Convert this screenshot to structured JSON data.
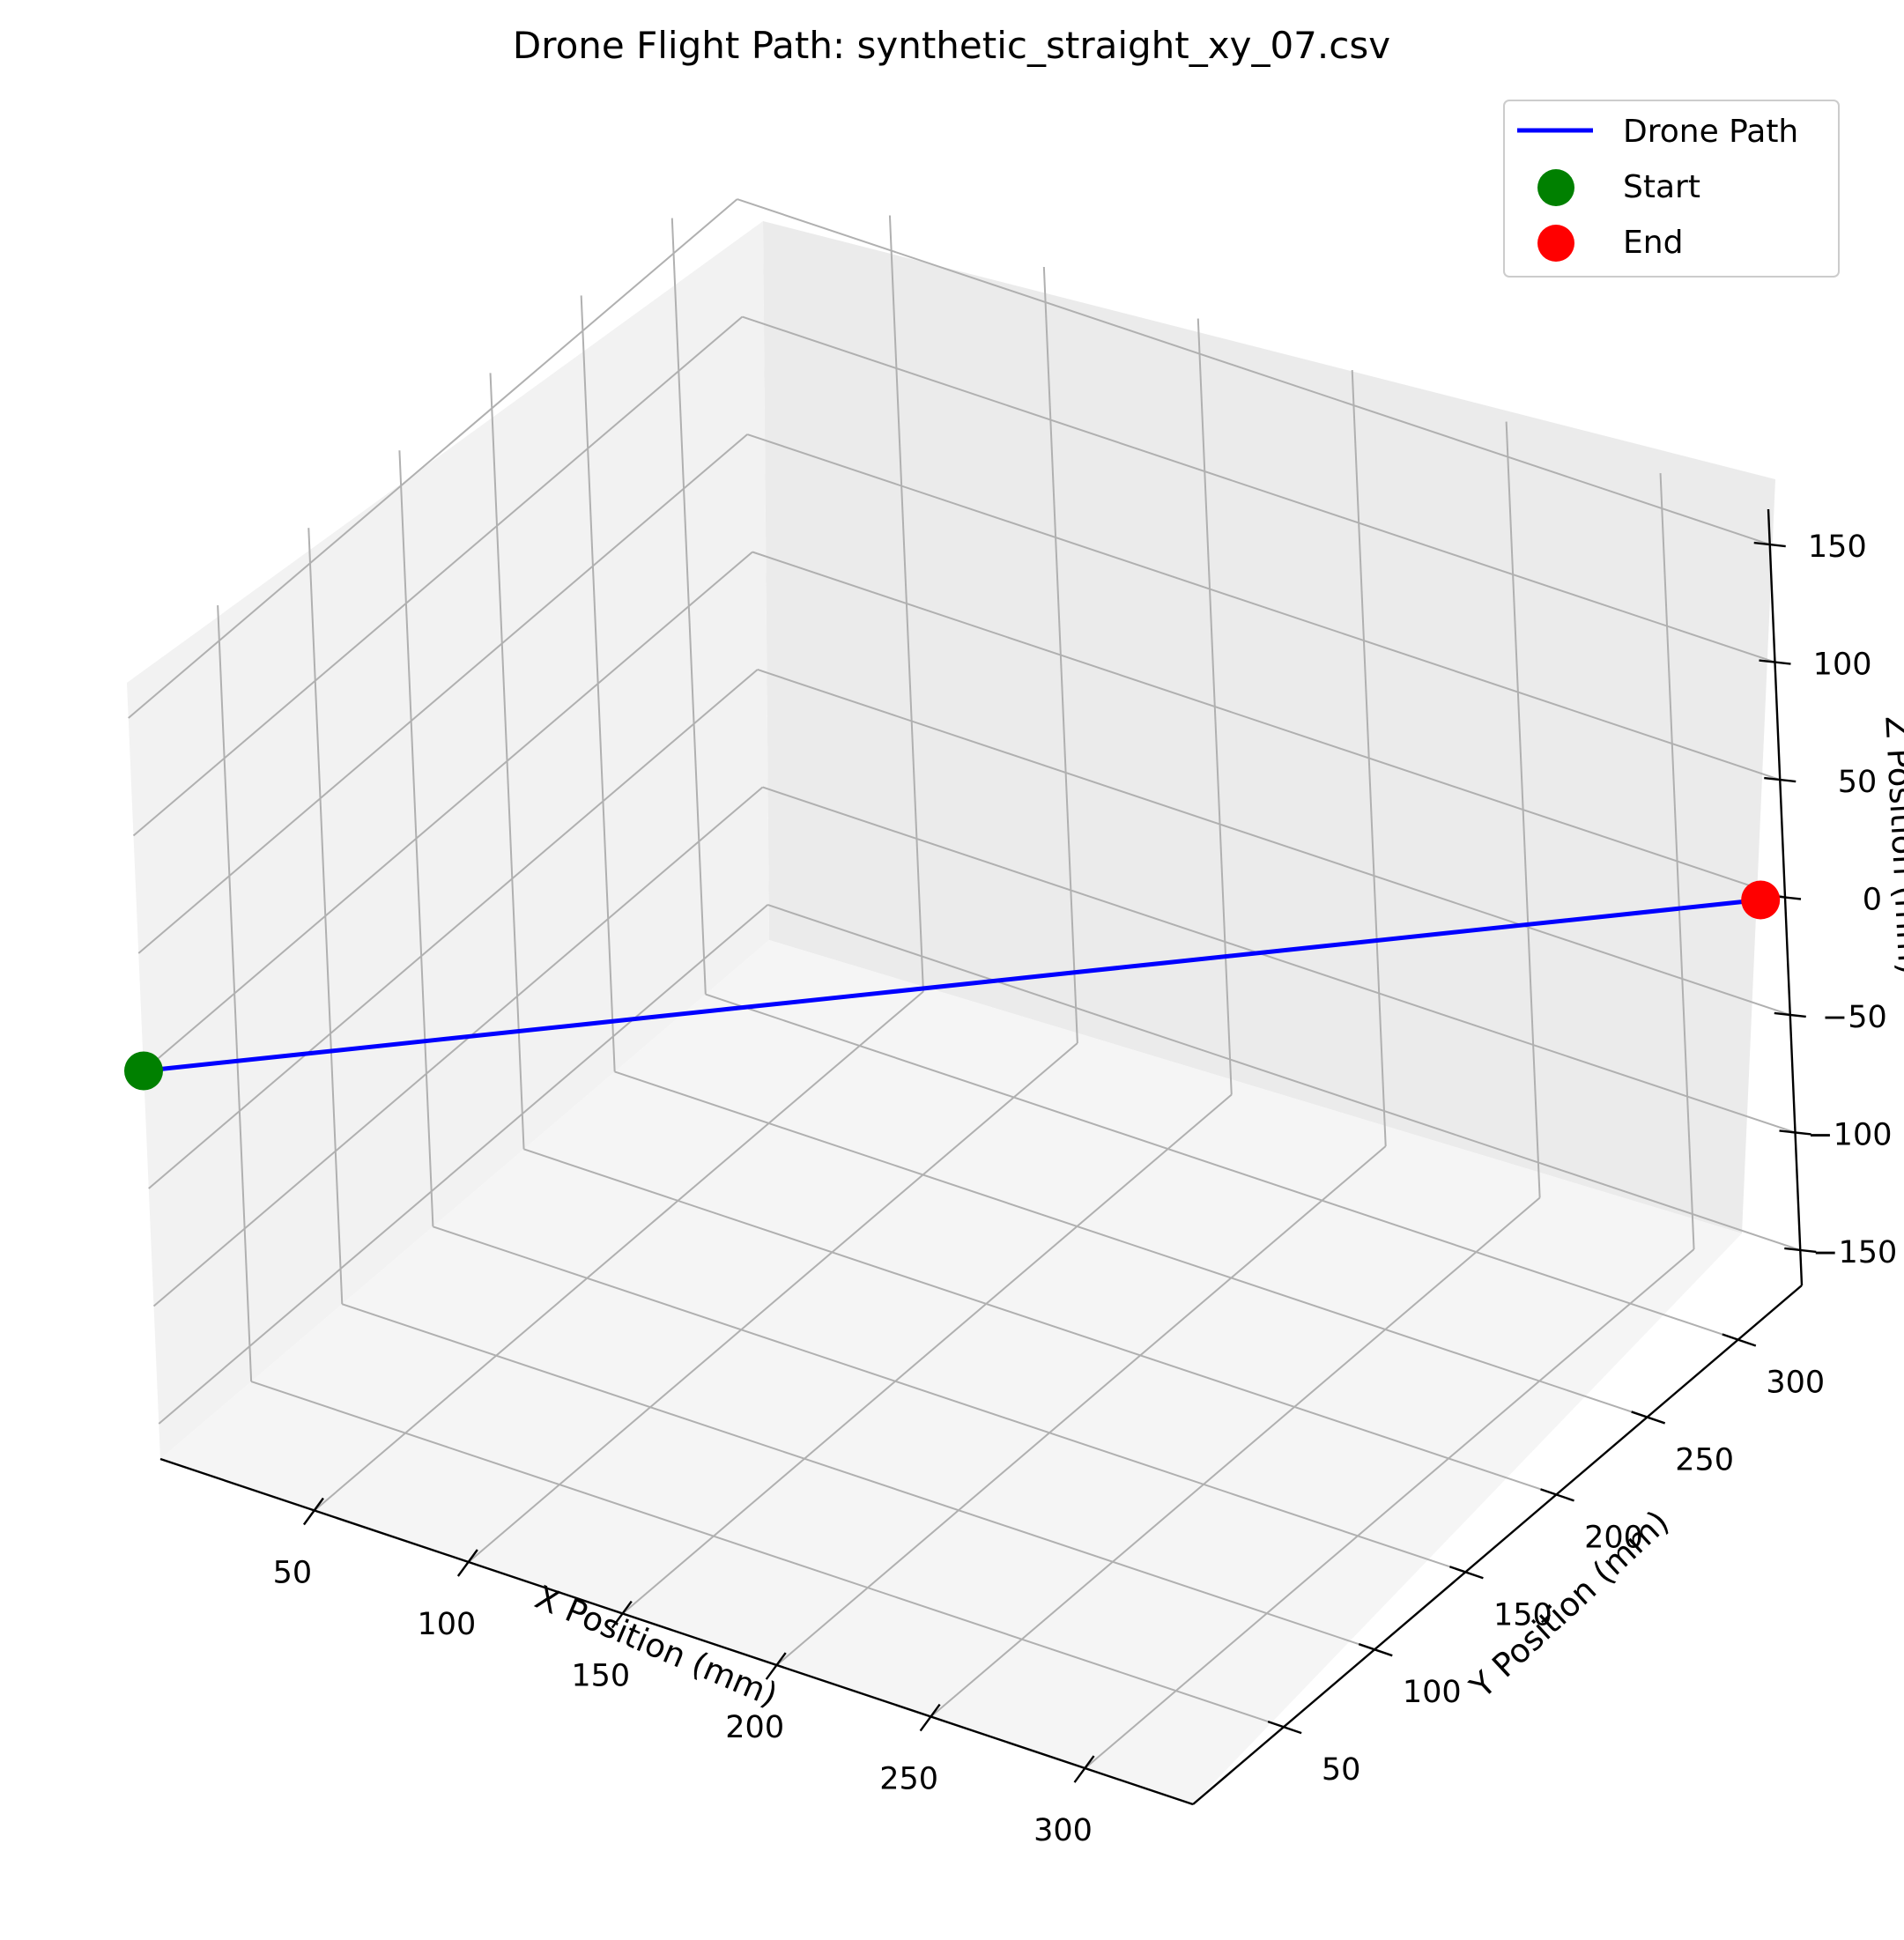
{
  "chart_data": {
    "type": "line",
    "title": "Drone Flight Path: synthetic_straight_xy_07.csv",
    "xlabel": "X Position (mm)",
    "ylabel": "Y Position (mm)",
    "zlabel": "Z Position (mm)",
    "x_ticks": [
      "50",
      "100",
      "150",
      "200",
      "250",
      "300"
    ],
    "y_ticks": [
      "50",
      "100",
      "150",
      "200",
      "250",
      "300"
    ],
    "z_ticks": [
      "−150",
      "−100",
      "−50",
      "0",
      "50",
      "100",
      "150"
    ],
    "xlim": [
      0,
      335
    ],
    "ylim": [
      0,
      335
    ],
    "zlim": [
      -165,
      165
    ],
    "grid": true,
    "legend_position": "top-right",
    "series": [
      {
        "name": "Drone Path",
        "color": "#0000ff",
        "x": [
          0,
          30,
          60,
          90,
          120,
          150,
          180,
          210,
          240,
          270,
          300,
          330
        ],
        "y": [
          0,
          30,
          60,
          90,
          120,
          150,
          180,
          210,
          240,
          270,
          300,
          330
        ],
        "z": [
          0,
          0,
          0,
          0,
          0,
          0,
          0,
          0,
          0,
          0,
          0,
          0
        ]
      }
    ],
    "markers": [
      {
        "name": "Start",
        "color": "#008000",
        "x": 0,
        "y": 0,
        "z": 0
      },
      {
        "name": "End",
        "color": "#ff0000",
        "x": 330,
        "y": 330,
        "z": 0
      }
    ]
  }
}
